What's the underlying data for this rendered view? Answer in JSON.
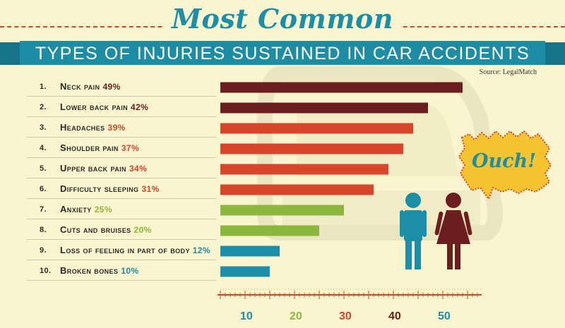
{
  "header": {
    "title": "Most Common",
    "subtitle": "TYPES OF INJURIES SUSTAINED IN CAR ACCIDENTS",
    "source": "Source: LegalMatch"
  },
  "callout": {
    "text": "Ouch!"
  },
  "colors": {
    "title_blue": "#1b8ea8",
    "banner_blue": "#1d8da6",
    "dark_red": "#6b1e1e",
    "orange_red": "#d9452a",
    "green": "#8ab83c",
    "teal": "#1b8ea8",
    "yellow": "#f4c430",
    "background": "#fbf5cf",
    "car_shape": "#ece6c0"
  },
  "chart_data": {
    "type": "bar",
    "orientation": "horizontal",
    "unit": "%",
    "xlim": [
      0,
      50
    ],
    "grid": false,
    "categories": [
      {
        "rank": "1.",
        "name": "Neck pain",
        "pct_label": "49%",
        "value": 49,
        "color": "#6b1e1e"
      },
      {
        "rank": "2.",
        "name": "Lower back pain",
        "pct_label": "42%",
        "value": 42,
        "color": "#6b1e1e"
      },
      {
        "rank": "3.",
        "name": "Headaches",
        "pct_label": "39%",
        "value": 39,
        "color": "#d9452a"
      },
      {
        "rank": "4.",
        "name": "Shoulder pain",
        "pct_label": "37%",
        "value": 37,
        "color": "#d9452a"
      },
      {
        "rank": "5.",
        "name": "Upper back pain",
        "pct_label": "34%",
        "value": 34,
        "color": "#d9452a"
      },
      {
        "rank": "6.",
        "name": "Difficulty sleeping",
        "pct_label": "31%",
        "value": 31,
        "color": "#d9452a"
      },
      {
        "rank": "7.",
        "name": "Anxiety",
        "pct_label": "25%",
        "value": 25,
        "color": "#8ab83c"
      },
      {
        "rank": "8.",
        "name": "Cuts and bruises",
        "pct_label": "20%",
        "value": 20,
        "color": "#8ab83c"
      },
      {
        "rank": "9.",
        "name": "Loss of feeling in part of body",
        "pct_label": "12%",
        "value": 12,
        "color": "#1b8ea8"
      },
      {
        "rank": "10.",
        "name": "Broken bones",
        "pct_label": "10%",
        "value": 10,
        "color": "#1b8ea8"
      }
    ],
    "ticks": [
      {
        "value": 10,
        "label": "10",
        "color": "#1b8ea8"
      },
      {
        "value": 20,
        "label": "20",
        "color": "#8ab83c"
      },
      {
        "value": 30,
        "label": "30",
        "color": "#d9452a"
      },
      {
        "value": 40,
        "label": "40",
        "color": "#6b1e1e"
      },
      {
        "value": 50,
        "label": "50",
        "color": "#1b8ea8"
      }
    ]
  }
}
